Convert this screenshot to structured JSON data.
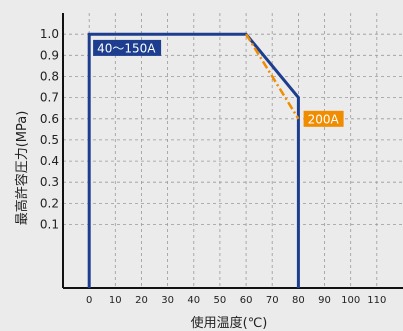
{
  "chart_data": {
    "type": "line",
    "xlabel": "使用温度(℃)",
    "ylabel": "最高許容圧力(MPa)",
    "xlim": [
      -10,
      120
    ],
    "ylim": [
      -0.2,
      1.1
    ],
    "grid": true,
    "x_ticks": [
      "0",
      "10",
      "20",
      "30",
      "40",
      "50",
      "60",
      "70",
      "80",
      "90",
      "100",
      "110"
    ],
    "y_ticks": [
      "0.1",
      "0.2",
      "0.3",
      "0.4",
      "0.5",
      "0.6",
      "0.7",
      "0.8",
      "0.9",
      "1.0"
    ],
    "series": [
      {
        "name": "40～150A",
        "color": "#1d3d8f",
        "style": "solid",
        "points": [
          [
            0,
            -0.2
          ],
          [
            0,
            1.0
          ],
          [
            60,
            1.0
          ],
          [
            80,
            0.7
          ],
          [
            80,
            -0.2
          ]
        ]
      },
      {
        "name": "200A",
        "color": "#f08c00",
        "style": "dashdot",
        "points": [
          [
            60,
            1.0
          ],
          [
            80,
            0.6
          ]
        ]
      }
    ]
  },
  "colors": {
    "background": "#ebebeb",
    "grid": "#9a9a9a",
    "axis": "#111111"
  }
}
